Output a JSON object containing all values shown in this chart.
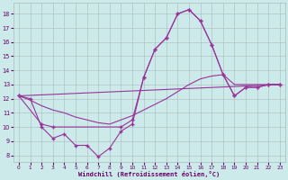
{
  "background_color": "#cceaea",
  "line_color": "#993399",
  "grid_color": "#aabbbb",
  "axis_label_color": "#660066",
  "tick_label_color": "#660066",
  "xlabel": "Windchill (Refroidissement éolien,°C)",
  "xlim": [
    -0.5,
    23.5
  ],
  "ylim": [
    7.5,
    18.8
  ],
  "yticks": [
    8,
    9,
    10,
    11,
    12,
    13,
    14,
    15,
    16,
    17,
    18
  ],
  "xticks": [
    0,
    1,
    2,
    3,
    4,
    5,
    6,
    7,
    8,
    9,
    10,
    11,
    12,
    13,
    14,
    15,
    16,
    17,
    18,
    19,
    20,
    21,
    22,
    23
  ],
  "line1_x": [
    0,
    1,
    2,
    3,
    4,
    5,
    6,
    7,
    8,
    9,
    10,
    11,
    12,
    13,
    14,
    15,
    16,
    17,
    18,
    19,
    20,
    21,
    22,
    23
  ],
  "line1_y": [
    12.2,
    12.0,
    10.0,
    9.2,
    9.5,
    8.7,
    8.7,
    7.9,
    8.5,
    9.7,
    10.2,
    13.5,
    15.5,
    16.3,
    18.0,
    18.3,
    17.5,
    15.8,
    13.7,
    12.2,
    12.8,
    12.8,
    13.0,
    13.0
  ],
  "line2_x": [
    0,
    1,
    2,
    3,
    4,
    5,
    6,
    7,
    8,
    9,
    10,
    11,
    12,
    13,
    14,
    15,
    16,
    17,
    18,
    19,
    20,
    21,
    22,
    23
  ],
  "line2_y": [
    12.2,
    11.9,
    11.5,
    11.2,
    11.0,
    10.7,
    10.5,
    10.3,
    10.2,
    10.5,
    10.8,
    11.2,
    11.6,
    12.0,
    12.5,
    13.0,
    13.4,
    13.6,
    13.7,
    13.0,
    13.0,
    13.0,
    13.0,
    13.0
  ],
  "line3_x": [
    0,
    23
  ],
  "line3_y": [
    12.2,
    13.0
  ],
  "line4_x": [
    0,
    2,
    3,
    9,
    10,
    11,
    12,
    13,
    14,
    15,
    16,
    17,
    18,
    19,
    20,
    21,
    22,
    23
  ],
  "line4_y": [
    12.2,
    10.2,
    10.0,
    10.0,
    10.5,
    13.5,
    15.5,
    16.3,
    18.0,
    18.3,
    17.5,
    15.8,
    13.7,
    12.2,
    12.8,
    12.8,
    13.0,
    13.0
  ]
}
